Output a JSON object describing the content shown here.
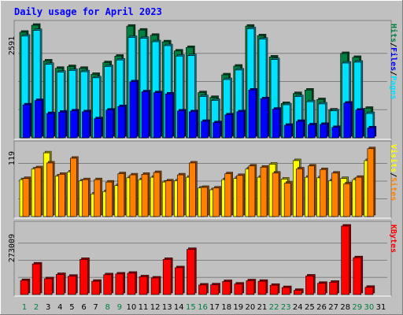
{
  "chart_data": {
    "type": "bar",
    "title": "Daily usage for April 2023",
    "x": [
      "1",
      "2",
      "3",
      "4",
      "5",
      "6",
      "7",
      "8",
      "9",
      "10",
      "11",
      "12",
      "13",
      "14",
      "15",
      "16",
      "17",
      "18",
      "19",
      "20",
      "21",
      "22",
      "23",
      "24",
      "25",
      "26",
      "27",
      "28",
      "29",
      "30",
      "31"
    ],
    "weekend_days": [
      "1",
      "2",
      "8",
      "9",
      "15",
      "16",
      "22",
      "23",
      "29",
      "30"
    ],
    "panels": [
      {
        "name": "hits-files-pages",
        "ymax_label": "2591",
        "ymax": 2591,
        "right_labels": [
          "Pages",
          "/",
          "Files",
          "/",
          "Hits"
        ],
        "series": [
          {
            "name": "Hits",
            "color": "#008040",
            "values": [
              2430,
              2591,
              1770,
              1600,
              1640,
              1600,
              1460,
              1730,
              1880,
              2570,
              2480,
              2360,
              2210,
              2000,
              2080,
              1040,
              930,
              1450,
              1650,
              2570,
              2350,
              1860,
              790,
              1020,
              1100,
              880,
              640,
              1940,
              1850,
              680
            ]
          },
          {
            "name": "Files",
            "color": "#00e0ff",
            "values": [
              2340,
              2470,
              1690,
              1510,
              1550,
              1520,
              1380,
              1640,
              1790,
              2310,
              2290,
              2210,
              2120,
              1880,
              1890,
              950,
              860,
              1340,
              1560,
              2510,
              2270,
              1800,
              760,
              950,
              830,
              780,
              620,
              1720,
              1740,
              560
            ]
          },
          {
            "name": "Pages",
            "color": "#0000ff",
            "values": [
              760,
              860,
              560,
              590,
              620,
              600,
              440,
              640,
              720,
              1290,
              1060,
              1040,
              1010,
              620,
              600,
              380,
              350,
              530,
              600,
              1100,
              900,
              660,
              290,
              380,
              300,
              310,
              240,
              800,
              640,
              230
            ]
          }
        ]
      },
      {
        "name": "visits-sites",
        "ymax_label": "119",
        "ymax": 119,
        "right_labels": [
          "Sites",
          "/",
          "Visits"
        ],
        "series": [
          {
            "name": "Visits",
            "color": "#ffff00",
            "values": [
              62,
              80,
              107,
              68,
              75,
              60,
              38,
              42,
              52,
              65,
              62,
              66,
              58,
              60,
              66,
              48,
              45,
              62,
              64,
              80,
              66,
              88,
              63,
              94,
              66,
              65,
              60,
              64,
              62,
              94
            ]
          },
          {
            "name": "Sites",
            "color": "#ff8000",
            "values": [
              64,
              82,
              90,
              71,
              98,
              62,
              62,
              58,
              72,
              70,
              71,
              74,
              60,
              70,
              90,
              49,
              48,
              72,
              69,
              85,
              83,
              73,
              56,
              80,
              85,
              79,
              73,
              55,
              66,
              114
            ]
          }
        ]
      },
      {
        "name": "kbytes",
        "ymax_label": "273009",
        "ymax": 273009,
        "right_labels": [
          "KBytes"
        ],
        "series": [
          {
            "name": "KBytes",
            "color": "#ff0000",
            "values": [
              56000,
              122000,
              63000,
              80000,
              73000,
              140000,
              53000,
              79000,
              82000,
              85000,
              71000,
              66000,
              140000,
              107000,
              180000,
              38000,
              39000,
              52000,
              42000,
              55000,
              53000,
              37000,
              28000,
              17000,
              74000,
              45000,
              49000,
              273009,
              147000,
              29000
            ]
          }
        ]
      }
    ]
  }
}
